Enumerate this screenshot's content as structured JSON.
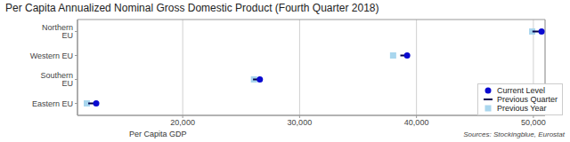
{
  "chart_data": {
    "type": "dot",
    "title": "Per Capita Annualized Nominal Gross Domestic Product (Fourth Quarter 2018)",
    "x_label": "Per Capita GDP",
    "annotations": [
      "Sources: Stockingblue, Eurostat"
    ],
    "orientation": "horizontal",
    "categories": [
      "Northern EU",
      "Western EU",
      "Southern EU",
      "Eastern EU"
    ],
    "series": [
      {
        "name": "Current Level",
        "color": "#0a0ad0",
        "marker": "circle",
        "values": [
          50700,
          39200,
          26600,
          12600
        ]
      },
      {
        "name": "Previous Quarter",
        "color": "#00004d",
        "marker": "line",
        "values": [
          50300,
          39000,
          26400,
          12300
        ]
      },
      {
        "name": "Previous Year",
        "color": "#a9d6ee",
        "marker": "square",
        "values": [
          49900,
          38000,
          26100,
          11800
        ]
      }
    ],
    "xlim": [
      11000,
      51000
    ],
    "xticks": [
      {
        "value": 20000,
        "label": "20,000"
      },
      {
        "value": 30000,
        "label": "30,000"
      },
      {
        "value": 40000,
        "label": "40,000"
      },
      {
        "value": 50000,
        "label": "50,000"
      }
    ],
    "grid": true,
    "legend": "lower right"
  }
}
